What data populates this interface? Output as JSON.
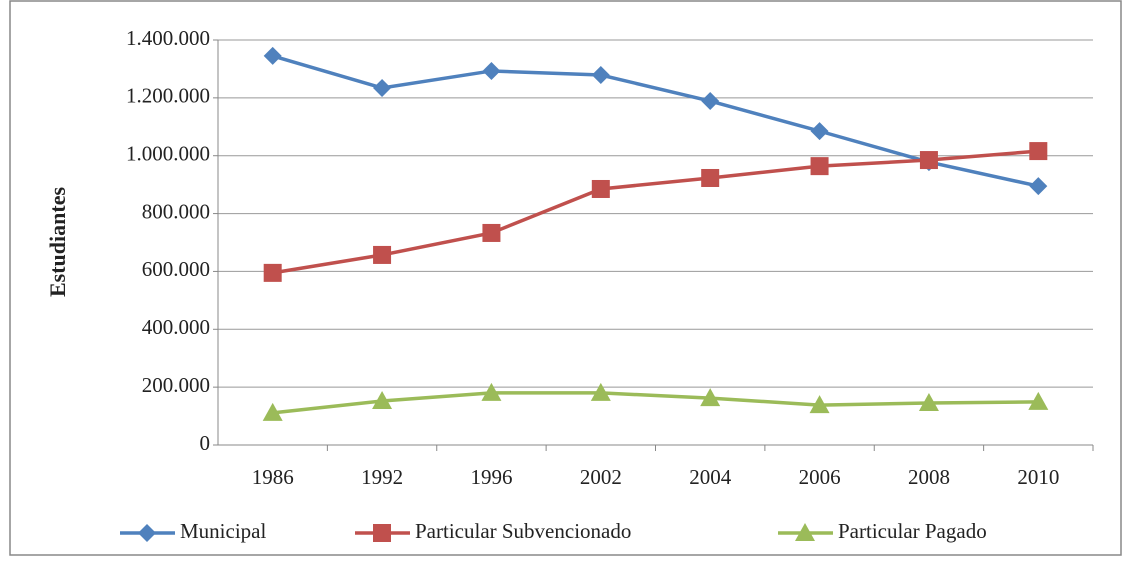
{
  "chart_data": {
    "type": "line",
    "y_label": "Estudiantes",
    "categories": [
      "1986",
      "1992",
      "1996",
      "2002",
      "2004",
      "2006",
      "2008",
      "2010"
    ],
    "series": [
      {
        "name": "Municipal",
        "color": "#4f81bd",
        "marker": "diamond",
        "values": [
          1345000,
          1234000,
          1293000,
          1279000,
          1189000,
          1085000,
          978000,
          895000
        ]
      },
      {
        "name": "Particular Subvencionado",
        "color": "#c0504d",
        "marker": "square",
        "values": [
          595000,
          657000,
          733000,
          885000,
          923000,
          964000,
          985000,
          1016000
        ]
      },
      {
        "name": "Particular Pagado",
        "color": "#9bbb59",
        "marker": "triangle",
        "values": [
          111000,
          152000,
          180000,
          180000,
          162000,
          138000,
          145000,
          149000
        ]
      }
    ],
    "ylim": [
      0,
      1400000
    ],
    "yticks": [
      0,
      {
        "value": 200000,
        "label": "200.000"
      },
      {
        "value": 400000,
        "label": "400.000"
      },
      {
        "value": 600000,
        "label": "600.000"
      },
      {
        "value": 800000,
        "label": "800.000"
      },
      {
        "value": 1000000,
        "label": "1.000.000"
      },
      {
        "value": 1200000,
        "label": "1.200.000"
      },
      {
        "value": 1400000,
        "label": "1.400.000"
      }
    ],
    "grid": true,
    "legend": "bottom"
  }
}
